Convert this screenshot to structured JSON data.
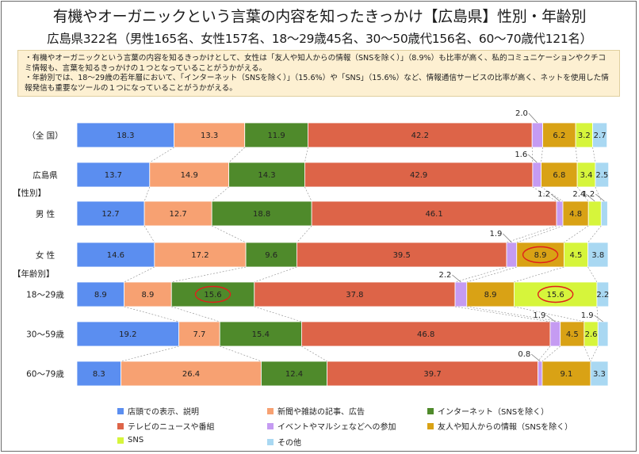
{
  "title": "有機やオーガニックという言葉の内容を知ったきっかけ【広島県】性別・年齢別",
  "subtitle": "広島県322名（男性165名、女性157名、18〜29歳45名、30〜50歳代156名、60〜70歳代121名）",
  "notes": [
    "・有機やオーガニックという言葉の内容を知るきっかけとして、女性は「友人や知人からの情報（SNSを除く）」（8.9%）も比率が高く、私的コミュニケーションやクチコミ情報も、言葉を知るきっかけの１つとなっていることがうかがえる。",
    "・年齢別では、18〜29歳の若年層において、「インターネット（SNSを除く）」（15.6%）や「SNS」（15.6%）など、情報通信サービスの比率が高く、ネットを使用した情報発信も重要なツールの１つになっていることがうかがえる。"
  ],
  "chart_data": {
    "type": "bar",
    "orientation": "horizontal-stacked-100",
    "group_labels": [
      "【性別】",
      "【年齢別】"
    ],
    "categories": [
      "（全 国）",
      "広島県",
      "男 性",
      "女 性",
      "18〜29歳",
      "30〜59歳",
      "60〜79歳"
    ],
    "series": [
      {
        "name": "店頭での表示、説明",
        "color": "#5b8ef0",
        "values": [
          18.3,
          13.7,
          12.7,
          14.6,
          8.9,
          19.2,
          8.3
        ]
      },
      {
        "name": "新聞や雑誌の記事、広告",
        "color": "#f7a172",
        "values": [
          13.3,
          14.9,
          12.7,
          17.2,
          8.9,
          7.7,
          26.4
        ]
      },
      {
        "name": "インターネット（SNSを除く）",
        "color": "#4f8a2b",
        "values": [
          11.9,
          14.3,
          18.8,
          9.6,
          15.6,
          15.4,
          12.4
        ]
      },
      {
        "name": "テレビのニュースや番組",
        "color": "#dd6448",
        "values": [
          42.2,
          42.9,
          46.1,
          39.5,
          37.8,
          46.8,
          39.7
        ]
      },
      {
        "name": "イベントやマルシェなどへの参加",
        "color": "#c59bf2",
        "values": [
          2.0,
          1.6,
          1.2,
          1.9,
          2.2,
          1.9,
          0.8
        ]
      },
      {
        "name": "友人や知人からの情報（SNSを除く）",
        "color": "#d9a215",
        "values": [
          6.2,
          6.8,
          4.8,
          8.9,
          8.9,
          4.5,
          9.1
        ]
      },
      {
        "name": "SNS",
        "color": "#d6f53b",
        "values": [
          3.2,
          3.4,
          2.4,
          4.5,
          15.6,
          2.6,
          0
        ]
      },
      {
        "name": "その他",
        "color": "#a9d8f2",
        "values": [
          2.7,
          2.5,
          1.2,
          3.8,
          2.2,
          1.9,
          3.3
        ]
      }
    ],
    "outside_labels": [
      {
        "row": 0,
        "series": 4,
        "text": "2.0"
      },
      {
        "row": 1,
        "series": 4,
        "text": "1.6"
      },
      {
        "row": 2,
        "series": 4,
        "text": "1.2"
      },
      {
        "row": 2,
        "series": 6,
        "text": "2.4"
      },
      {
        "row": 2,
        "series": 7,
        "text": "1.2"
      },
      {
        "row": 3,
        "series": 4,
        "text": "1.9"
      },
      {
        "row": 4,
        "series": 4,
        "text": "2.2"
      },
      {
        "row": 5,
        "series": 4,
        "text": "1.9"
      },
      {
        "row": 5,
        "series": 7,
        "text": "1.9"
      },
      {
        "row": 6,
        "series": 4,
        "text": "0.8"
      }
    ],
    "highlighted": [
      {
        "row": 3,
        "series": 5
      },
      {
        "row": 4,
        "series": 2
      },
      {
        "row": 4,
        "series": 6
      }
    ],
    "legend_position": "bottom"
  }
}
